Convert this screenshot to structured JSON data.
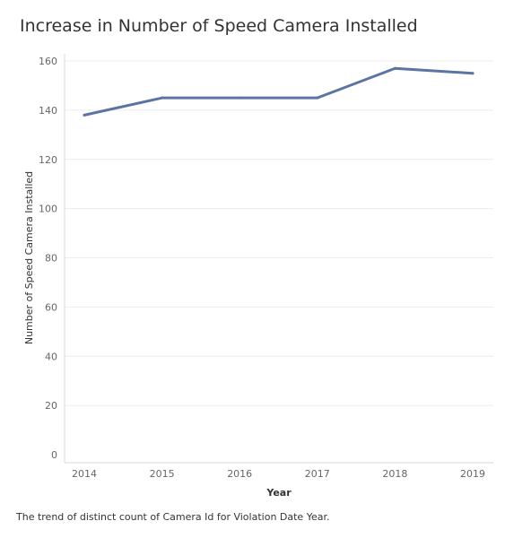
{
  "chart_data": {
    "type": "line",
    "title": "Increase in Number of Speed Camera Installed",
    "xlabel": "Year",
    "ylabel": "Number of Speed Camera Installed",
    "caption": "The trend of distinct count of Camera Id for Violation Date Year.",
    "categories": [
      "2014",
      "2015",
      "2016",
      "2017",
      "2018",
      "2019"
    ],
    "series": [
      {
        "values": [
          138,
          145,
          145,
          145,
          157,
          155
        ]
      }
    ],
    "ylim": [
      0,
      160
    ],
    "yticks": [
      0,
      20,
      40,
      60,
      80,
      100,
      120,
      140,
      160
    ],
    "grid": true,
    "colors": {
      "line": "#5a75a3",
      "grid": "#ececec",
      "axis": "#d9d9d9"
    }
  }
}
